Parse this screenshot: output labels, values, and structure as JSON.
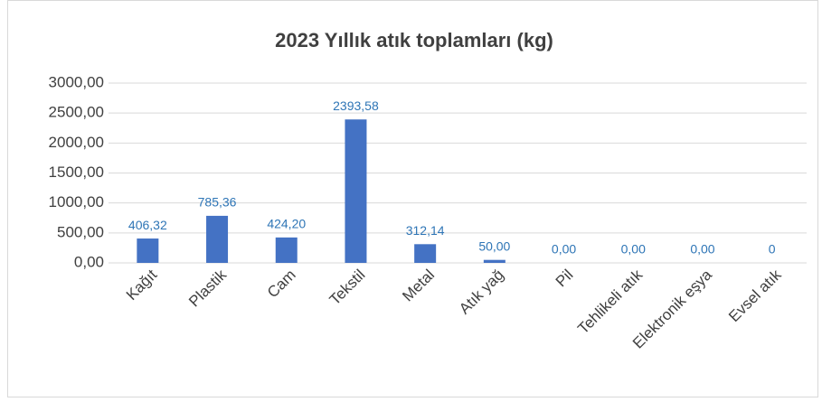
{
  "chart_data": {
    "type": "bar",
    "title": "2023 Yıllık atık toplamları (kg)",
    "categories": [
      "Kağıt",
      "Plastik",
      "Cam",
      "Tekstil",
      "Metal",
      "Atık yağ",
      "Pil",
      "Tehlikeli atık",
      "Elektronik eşya",
      "Evsel atık"
    ],
    "values": [
      406.32,
      785.36,
      424.2,
      2393.58,
      312.14,
      50,
      0,
      0,
      0,
      0
    ],
    "value_labels": [
      "406,32",
      "785,36",
      "424,20",
      "2393,58",
      "312,14",
      "50,00",
      "0,00",
      "0,00",
      "0,00",
      "0"
    ],
    "color": "#4472c4",
    "ylim": [
      0,
      3000
    ],
    "yticks": [
      {
        "value": 0,
        "label": "0,00"
      },
      {
        "value": 500,
        "label": "500,00"
      },
      {
        "value": 1000,
        "label": "1000,00"
      },
      {
        "value": 1500,
        "label": "1500,00"
      },
      {
        "value": 2000,
        "label": "2000,00"
      },
      {
        "value": 2500,
        "label": "2500,00"
      },
      {
        "value": 3000,
        "label": "3000,00"
      }
    ],
    "grid": true
  }
}
